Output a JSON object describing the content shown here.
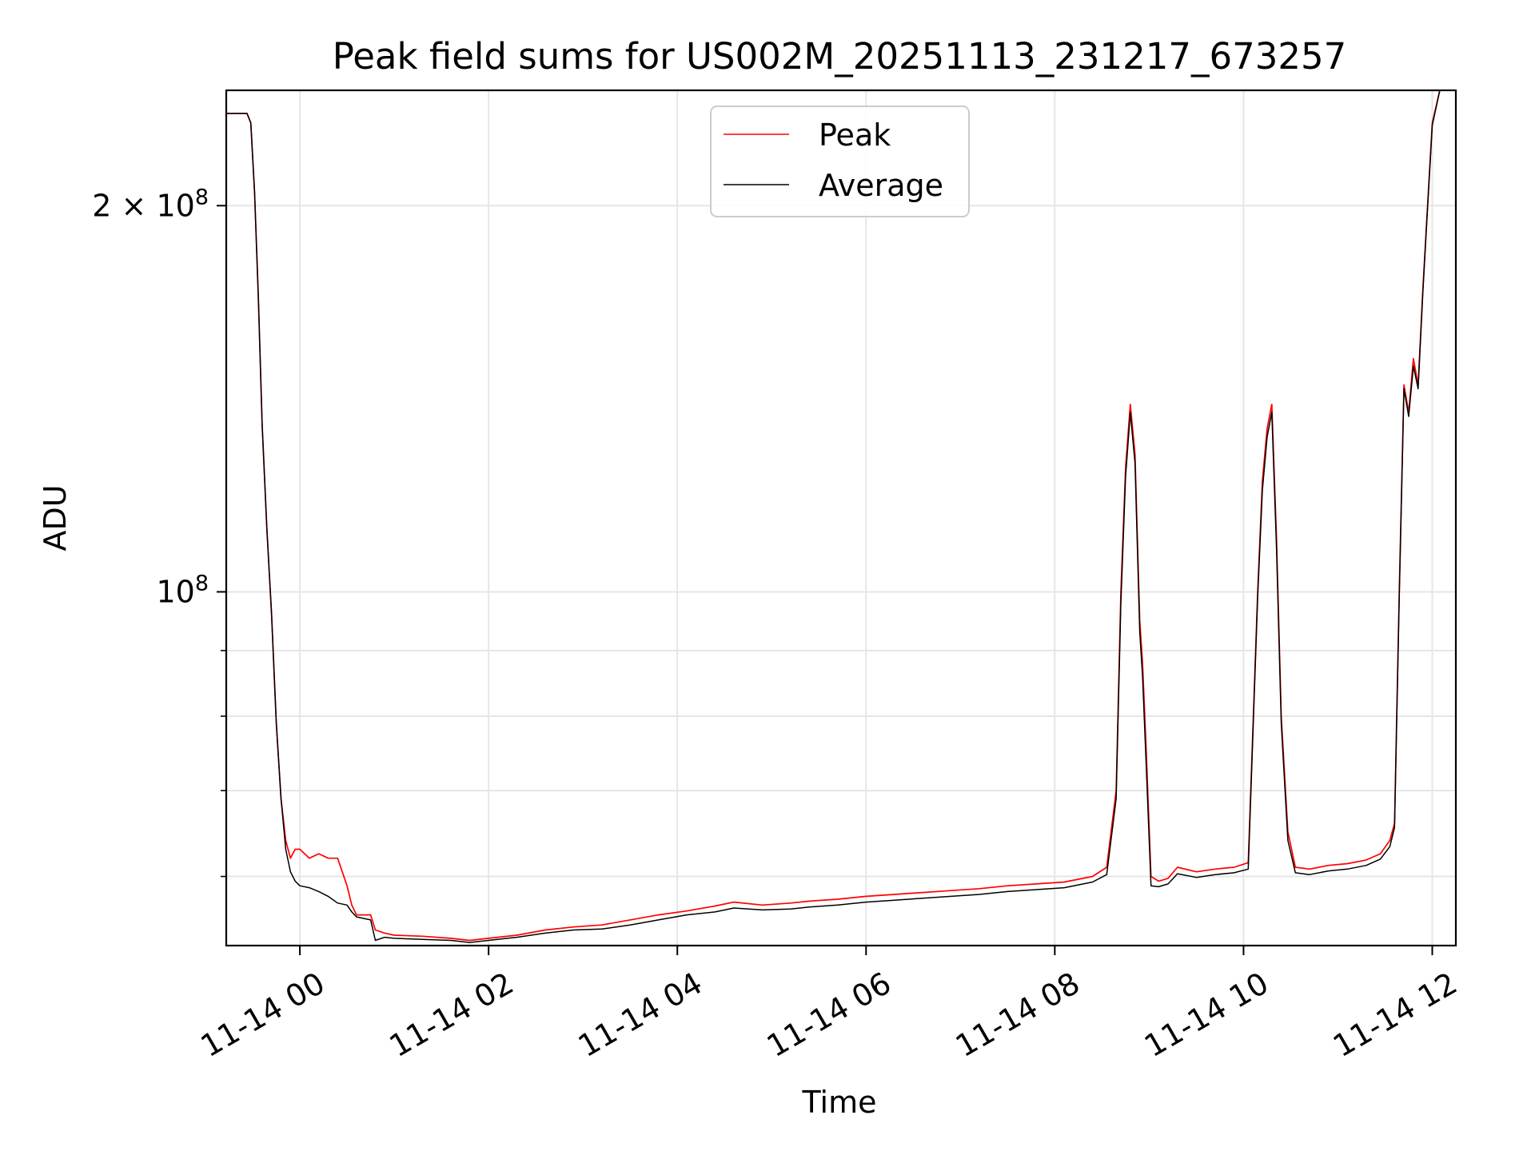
{
  "chart_data": {
    "type": "line",
    "title": "Peak field sums for US002M_20251113_231217_673257",
    "xlabel": "Time",
    "ylabel": "ADU",
    "yscale": "log",
    "ylim": [
      53000000,
      246000000
    ],
    "xlim": [
      -0.78,
      12.25
    ],
    "grid": true,
    "legend_position": "top-center",
    "x_ticks": [
      {
        "value": 0,
        "label": "11-14 00"
      },
      {
        "value": 2,
        "label": "11-14 02"
      },
      {
        "value": 4,
        "label": "11-14 04"
      },
      {
        "value": 6,
        "label": "11-14 06"
      },
      {
        "value": 8,
        "label": "11-14 08"
      },
      {
        "value": 10,
        "label": "11-14 10"
      },
      {
        "value": 12,
        "label": "11-14 12"
      }
    ],
    "y_ticks": [
      {
        "value": 200000000,
        "label_base": "2 × 10",
        "label_exp": "8"
      },
      {
        "value": 100000000,
        "label_base": "10",
        "label_exp": "8"
      }
    ],
    "y_minor_ticks": [
      60000000,
      70000000,
      80000000,
      90000000
    ],
    "series": [
      {
        "name": "Peak",
        "color": "#ff0000",
        "x": [
          -0.78,
          -0.6,
          -0.56,
          -0.52,
          -0.48,
          -0.44,
          -0.4,
          -0.35,
          -0.3,
          -0.25,
          -0.2,
          -0.15,
          -0.1,
          -0.05,
          0.0,
          0.1,
          0.2,
          0.3,
          0.4,
          0.5,
          0.55,
          0.6,
          0.75,
          0.8,
          0.9,
          1.0,
          1.3,
          1.6,
          1.8,
          2.0,
          2.3,
          2.6,
          2.9,
          3.2,
          3.5,
          3.8,
          4.1,
          4.4,
          4.6,
          4.9,
          5.2,
          5.4,
          5.7,
          6.0,
          6.3,
          6.6,
          6.9,
          7.2,
          7.5,
          7.8,
          8.1,
          8.4,
          8.55,
          8.65,
          8.7,
          8.75,
          8.8,
          8.85,
          8.9,
          8.93,
          8.97,
          9.02,
          9.1,
          9.2,
          9.3,
          9.5,
          9.7,
          9.9,
          10.05,
          10.15,
          10.2,
          10.25,
          10.3,
          10.35,
          10.4,
          10.47,
          10.55,
          10.7,
          10.9,
          11.1,
          11.3,
          11.45,
          11.55,
          11.6,
          11.65,
          11.7,
          11.75,
          11.8,
          11.85,
          11.9,
          11.95,
          12.0,
          12.08
        ],
        "values": [
          236000000,
          236000000,
          236000000,
          232000000,
          205000000,
          170000000,
          135000000,
          112000000,
          96000000,
          79000000,
          69000000,
          64000000,
          62000000,
          63000000,
          63000000,
          62000000,
          62500000,
          62000000,
          62000000,
          59000000,
          57000000,
          56000000,
          56000000,
          54500000,
          54200000,
          54000000,
          53900000,
          53700000,
          53500000,
          53700000,
          54000000,
          54500000,
          54800000,
          55000000,
          55500000,
          56000000,
          56400000,
          56900000,
          57300000,
          57000000,
          57200000,
          57400000,
          57600000,
          57900000,
          58100000,
          58300000,
          58500000,
          58700000,
          59000000,
          59200000,
          59400000,
          60000000,
          61000000,
          70000000,
          100000000,
          125000000,
          140000000,
          128000000,
          95000000,
          88000000,
          75000000,
          60000000,
          59500000,
          59800000,
          61000000,
          60500000,
          60800000,
          61000000,
          61500000,
          100000000,
          122000000,
          134000000,
          140000000,
          110000000,
          80000000,
          65000000,
          61000000,
          60800000,
          61200000,
          61400000,
          61800000,
          62500000,
          64000000,
          66000000,
          100000000,
          145000000,
          138000000,
          152000000,
          145000000,
          172000000,
          200000000,
          232000000,
          246000000
        ]
      },
      {
        "name": "Average",
        "color": "#000000",
        "x": [
          -0.78,
          -0.6,
          -0.56,
          -0.52,
          -0.48,
          -0.44,
          -0.4,
          -0.35,
          -0.3,
          -0.25,
          -0.2,
          -0.15,
          -0.1,
          -0.05,
          0.0,
          0.1,
          0.2,
          0.3,
          0.4,
          0.5,
          0.55,
          0.6,
          0.75,
          0.8,
          0.9,
          1.0,
          1.3,
          1.6,
          1.8,
          2.0,
          2.3,
          2.6,
          2.9,
          3.2,
          3.5,
          3.8,
          4.1,
          4.4,
          4.6,
          4.9,
          5.2,
          5.4,
          5.7,
          6.0,
          6.3,
          6.6,
          6.9,
          7.2,
          7.5,
          7.8,
          8.1,
          8.4,
          8.55,
          8.65,
          8.7,
          8.75,
          8.8,
          8.85,
          8.9,
          8.93,
          8.97,
          9.02,
          9.1,
          9.2,
          9.3,
          9.5,
          9.7,
          9.9,
          10.05,
          10.15,
          10.2,
          10.25,
          10.3,
          10.35,
          10.4,
          10.47,
          10.55,
          10.7,
          10.9,
          11.1,
          11.3,
          11.45,
          11.55,
          11.6,
          11.65,
          11.7,
          11.75,
          11.8,
          11.85,
          11.9,
          11.95,
          12.0,
          12.08
        ],
        "values": [
          236000000,
          236000000,
          236000000,
          232000000,
          205000000,
          170000000,
          135000000,
          112000000,
          96000000,
          79000000,
          69000000,
          63000000,
          60500000,
          59500000,
          59000000,
          58800000,
          58400000,
          57900000,
          57200000,
          57000000,
          56300000,
          55800000,
          55500000,
          53500000,
          53800000,
          53700000,
          53600000,
          53500000,
          53300000,
          53500000,
          53800000,
          54200000,
          54500000,
          54600000,
          55000000,
          55500000,
          56000000,
          56300000,
          56700000,
          56500000,
          56600000,
          56800000,
          57000000,
          57300000,
          57500000,
          57700000,
          57900000,
          58100000,
          58400000,
          58600000,
          58800000,
          59400000,
          60200000,
          69000000,
          98000000,
          123000000,
          138000000,
          126000000,
          93000000,
          86000000,
          73000000,
          59000000,
          58900000,
          59200000,
          60300000,
          59900000,
          60200000,
          60400000,
          60800000,
          99000000,
          120000000,
          132000000,
          138000000,
          108000000,
          79000000,
          64000000,
          60400000,
          60200000,
          60600000,
          60800000,
          61200000,
          61900000,
          63300000,
          65500000,
          99000000,
          144000000,
          137000000,
          150000000,
          144000000,
          171000000,
          199000000,
          231000000,
          246000000
        ]
      }
    ]
  }
}
